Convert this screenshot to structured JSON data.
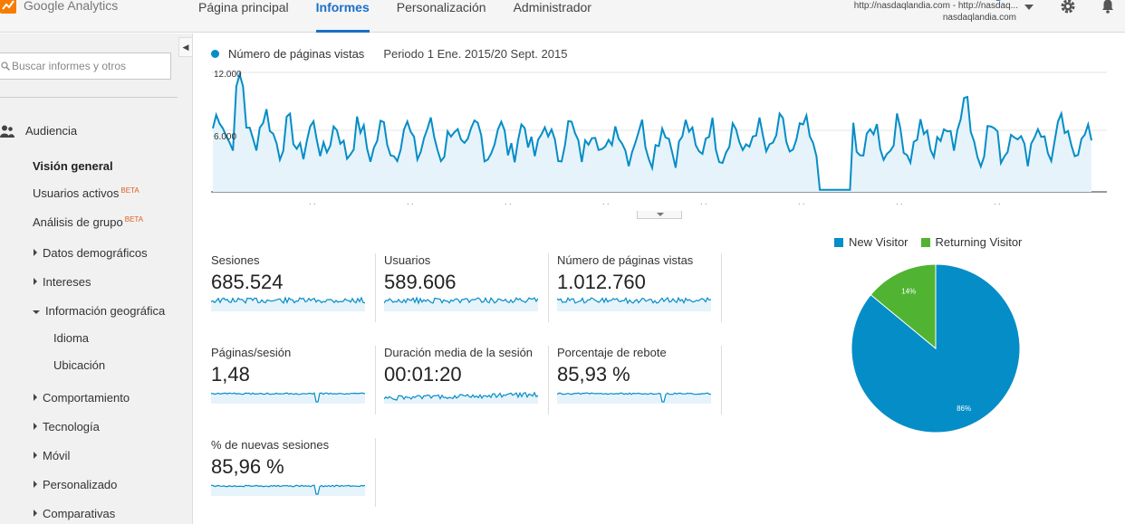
{
  "header": {
    "app_name": "Google Analytics",
    "nav": [
      "Página principal",
      "Informes",
      "Personalización",
      "Administrador"
    ],
    "active_nav": "Informes",
    "account_line1": "http://nasdaqlandia.com - http://nasdaq...",
    "account_line2": "nasdaqlandia.com"
  },
  "sidebar": {
    "search_placeholder": "Buscar informes y otros",
    "section": "Audiencia",
    "items": [
      {
        "label": "Visión general",
        "beta": ""
      },
      {
        "label": "Usuarios activos",
        "beta": "BETA"
      },
      {
        "label": "Análisis de grupo",
        "beta": "BETA"
      },
      {
        "label": "Datos demográficos"
      },
      {
        "label": "Intereses"
      },
      {
        "label": "Información geográfica"
      },
      {
        "label": "Idioma"
      },
      {
        "label": "Ubicación"
      },
      {
        "label": "Comportamiento"
      },
      {
        "label": "Tecnología"
      },
      {
        "label": "Móvil"
      },
      {
        "label": "Personalizado"
      },
      {
        "label": "Comparativas"
      }
    ]
  },
  "chart": {
    "metric": "Número de páginas vistas",
    "period": "Periodo 1 Ene. 2015/20 Sept. 2015",
    "ytick_top": "12.000",
    "ytick_mid": "6.000",
    "color": "#058dc7"
  },
  "metrics": [
    {
      "label": "Sesiones",
      "value": "685.524"
    },
    {
      "label": "Usuarios",
      "value": "589.606"
    },
    {
      "label": "Número de páginas vistas",
      "value": "1.012.760"
    },
    {
      "label": "Páginas/sesión",
      "value": "1,48"
    },
    {
      "label": "Duración media de la sesión",
      "value": "00:01:20"
    },
    {
      "label": "Porcentaje de rebote",
      "value": "85,93 %"
    },
    {
      "label": "% de nuevas sesiones",
      "value": "85,96 %"
    }
  ],
  "chart_data": {
    "type": "pie",
    "series": [
      {
        "name": "New Visitor",
        "value": 86,
        "label": "86%",
        "color": "#058dc7"
      },
      {
        "name": "Returning Visitor",
        "value": 14,
        "label": "14%",
        "color": "#50b432"
      }
    ]
  }
}
